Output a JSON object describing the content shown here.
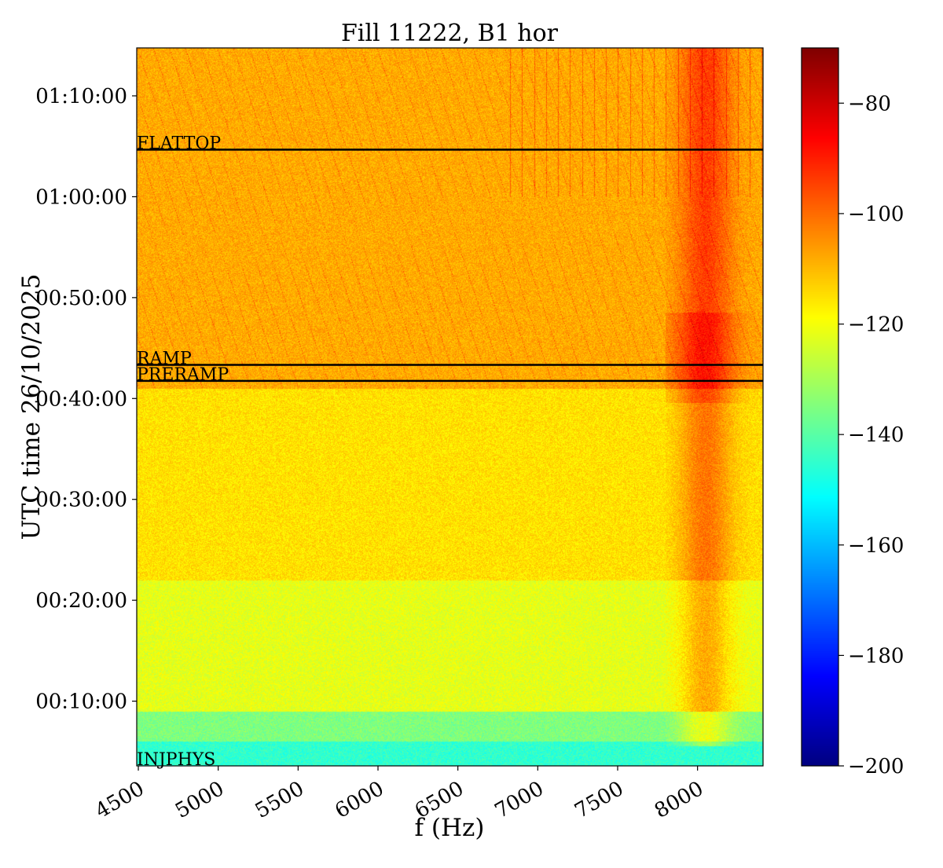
{
  "chart_data": {
    "type": "heatmap",
    "title": "Fill 11222, B1 hor",
    "xlabel": "f (Hz)",
    "ylabel": "UTC time 26/10/2025",
    "xlim": [
      4490,
      8410
    ],
    "ylim": [
      "00:03:35",
      "01:14:45"
    ],
    "x_ticks": [
      4500,
      5000,
      5500,
      6000,
      6500,
      7000,
      7500,
      8000
    ],
    "y_ticks": [
      "00:10:00",
      "00:20:00",
      "00:30:00",
      "00:40:00",
      "00:50:00",
      "01:00:00",
      "01:10:00"
    ],
    "colorbar": {
      "colormap": "jet",
      "range": [
        -200,
        -70
      ],
      "ticks": [
        -80,
        -100,
        -120,
        -140,
        -160,
        -180,
        -200
      ],
      "tick_labels": [
        "−80",
        "−100",
        "−120",
        "−140",
        "−160",
        "−180",
        "−200"
      ]
    },
    "phase_markers": [
      {
        "label": "FLATTOP",
        "time": "01:04:40"
      },
      {
        "label": "RAMP",
        "time": "00:43:20"
      },
      {
        "label": "PRERAMP",
        "time": "00:41:45"
      },
      {
        "label": "INJPHYS",
        "time": "00:03:35"
      }
    ],
    "approx_levels_dB": {
      "before_00:06": -145,
      "00:06_to_00:09": -135,
      "00:09_to_00:22": -122,
      "00:22_to_00:41": -115,
      "00:41_to_end": -108,
      "strong_line_near_8050Hz": -85
    }
  }
}
